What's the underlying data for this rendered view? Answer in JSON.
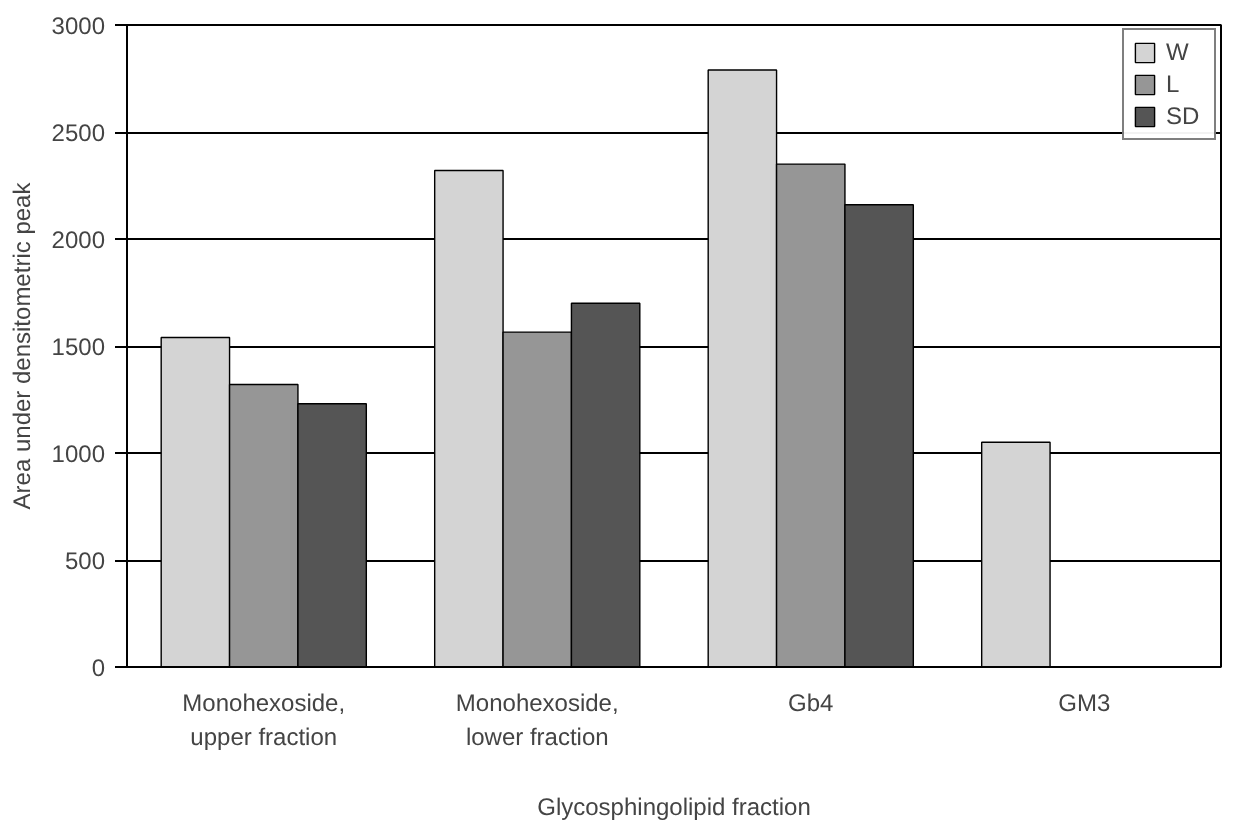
{
  "chart_data": {
    "type": "bar",
    "xlabel": "Glycosphingolipid fraction",
    "ylabel": "Area under densitometric peak",
    "categories": [
      "Monohexoside,\nupper fraction",
      "Monohexoside,\nlower fraction",
      "Gb4",
      "GM3"
    ],
    "series": [
      {
        "name": "W",
        "color": "#d4d4d4",
        "values": [
          1540,
          2320,
          2790,
          1050
        ]
      },
      {
        "name": "L",
        "color": "#969696",
        "values": [
          1320,
          1565,
          2350,
          null
        ]
      },
      {
        "name": "SD",
        "color": "#555555",
        "values": [
          1230,
          1700,
          2160,
          null
        ]
      }
    ],
    "ylim": [
      0,
      3000
    ],
    "yticks": [
      0,
      500,
      1000,
      1500,
      2000,
      2500,
      3000
    ],
    "grid": "y",
    "legend": "top right"
  }
}
